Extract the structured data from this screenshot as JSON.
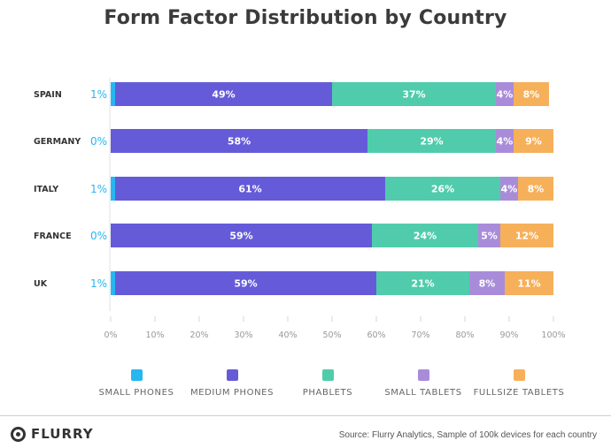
{
  "chart_data": {
    "type": "bar",
    "orientation": "horizontal",
    "stacked": true,
    "title": "Form Factor Distribution by Country",
    "categories": [
      "SPAIN",
      "GERMANY",
      "ITALY",
      "FRANCE",
      "UK"
    ],
    "series": [
      {
        "name": "SMALL PHONES",
        "color": "#27b6f0",
        "values": [
          1,
          0,
          1,
          0,
          1
        ],
        "labels": [
          "1%",
          "0%",
          "1%",
          "0%",
          "1%"
        ]
      },
      {
        "name": "MEDIUM PHONES",
        "color": "#655bd9",
        "values": [
          49,
          58,
          61,
          59,
          59
        ],
        "labels": [
          "49%",
          "58%",
          "61%",
          "59%",
          "59%"
        ]
      },
      {
        "name": "PHABLETS",
        "color": "#50ccac",
        "values": [
          37,
          29,
          26,
          24,
          21
        ],
        "labels": [
          "37%",
          "29%",
          "26%",
          "24%",
          "21%"
        ]
      },
      {
        "name": "SMALL TABLETS",
        "color": "#a98cd9",
        "values": [
          4,
          4,
          4,
          5,
          8
        ],
        "labels": [
          "4%",
          "4%",
          "4%",
          "5%",
          "8%"
        ]
      },
      {
        "name": "FULLSIZE TABLETS",
        "color": "#f6b05a",
        "values": [
          8,
          9,
          8,
          12,
          11
        ],
        "labels": [
          "8%",
          "9%",
          "8%",
          "12%",
          "11%"
        ]
      }
    ],
    "xlim": [
      0,
      100
    ],
    "xticks": [
      "0%",
      "10%",
      "20%",
      "30%",
      "40%",
      "50%",
      "60%",
      "70%",
      "80%",
      "90%",
      "100%"
    ],
    "legend_position": "bottom"
  },
  "footer": {
    "brand": "FLURRY",
    "source": "Source: Flurry Analytics, Sample of 100k devices for each country"
  },
  "colors": {
    "title": "#3b3b3b",
    "axis_text": "#999999",
    "category_text": "#333333",
    "small_phone_label": "#27b6f0"
  }
}
